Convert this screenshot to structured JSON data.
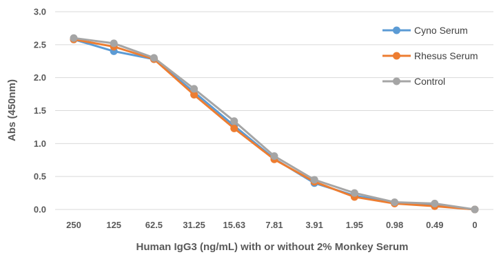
{
  "chart_data": {
    "type": "line",
    "title": "",
    "xlabel": "Human IgG3 (ng/mL) with or without 2% Monkey Serum",
    "ylabel": "Abs (450nm)",
    "categories": [
      "250",
      "125",
      "62.5",
      "31.25",
      "15.63",
      "7.81",
      "3.91",
      "1.95",
      "0.98",
      "0.49",
      "0"
    ],
    "ylim": [
      0,
      3.0
    ],
    "yticks": [
      "0.0",
      "0.5",
      "1.0",
      "1.5",
      "2.0",
      "2.5",
      "3.0"
    ],
    "grid": true,
    "legend_position": "top-right",
    "series": [
      {
        "name": "Cyno Serum",
        "color": "#5B9BD5",
        "values": [
          2.58,
          2.4,
          2.28,
          1.78,
          1.27,
          0.77,
          0.4,
          0.21,
          0.1,
          0.06,
          0.0
        ]
      },
      {
        "name": "Rhesus Serum",
        "color": "#ED7D31",
        "values": [
          2.58,
          2.47,
          2.28,
          1.74,
          1.23,
          0.76,
          0.42,
          0.19,
          0.09,
          0.05,
          0.0
        ]
      },
      {
        "name": "Control",
        "color": "#A5A5A5",
        "values": [
          2.6,
          2.52,
          2.3,
          1.83,
          1.34,
          0.81,
          0.45,
          0.25,
          0.11,
          0.09,
          0.0
        ]
      }
    ]
  }
}
